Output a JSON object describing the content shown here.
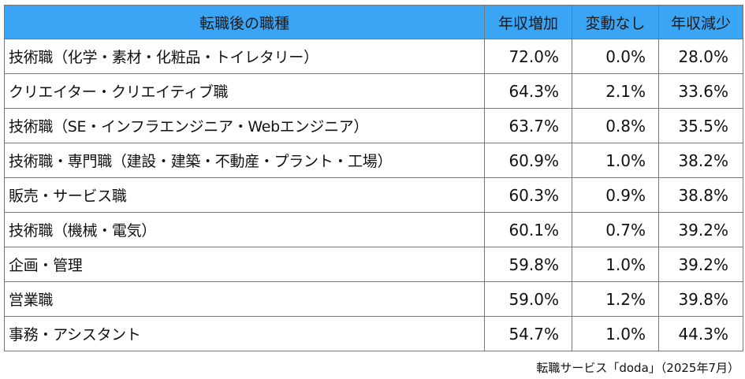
{
  "colors": {
    "header_bg": "#3aa4f5",
    "border": "#777777",
    "text": "#111111"
  },
  "chart_data": {
    "type": "table",
    "columns": [
      "転職後の職種",
      "年収増加",
      "変動なし",
      "年収減少"
    ],
    "rows": [
      {
        "job": "技術職（化学・素材・化粧品・トイレタリー）",
        "increase": "72.0%",
        "no_change": "0.0%",
        "decrease": "28.0%"
      },
      {
        "job": "クリエイター・クリエイティブ職",
        "increase": "64.3%",
        "no_change": "2.1%",
        "decrease": "33.6%"
      },
      {
        "job": "技術職（SE・インフラエンジニア・Webエンジニア）",
        "increase": "63.7%",
        "no_change": "0.8%",
        "decrease": "35.5%"
      },
      {
        "job": "技術職・専門職（建設・建築・不動産・プラント・工場）",
        "increase": "60.9%",
        "no_change": "1.0%",
        "decrease": "38.2%"
      },
      {
        "job": "販売・サービス職",
        "increase": "60.3%",
        "no_change": "0.9%",
        "decrease": "38.8%"
      },
      {
        "job": "技術職（機械・電気）",
        "increase": "60.1%",
        "no_change": "0.7%",
        "decrease": "39.2%"
      },
      {
        "job": "企画・管理",
        "increase": "59.8%",
        "no_change": "1.0%",
        "decrease": "39.2%"
      },
      {
        "job": "営業職",
        "increase": "59.0%",
        "no_change": "1.2%",
        "decrease": "39.8%"
      },
      {
        "job": "事務・アシスタント",
        "increase": "54.7%",
        "no_change": "1.0%",
        "decrease": "44.3%"
      }
    ],
    "source": "転職サービス「doda」（2025年7月）"
  }
}
